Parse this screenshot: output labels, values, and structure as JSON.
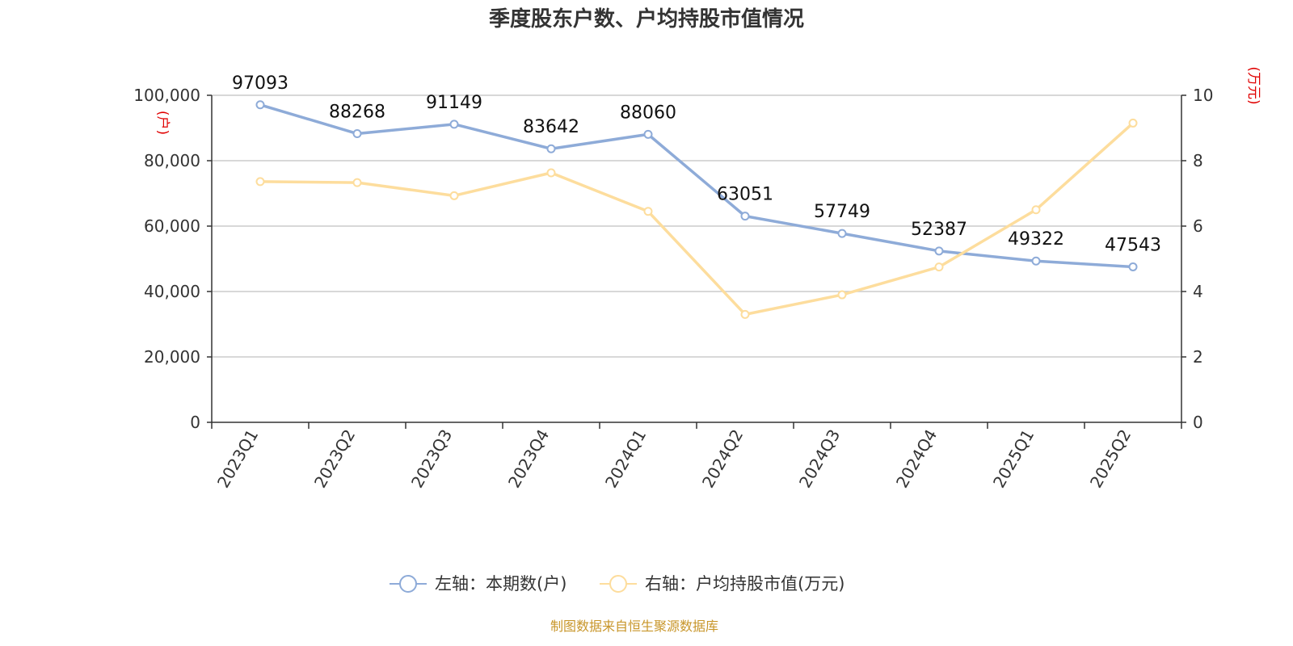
{
  "chart_data": {
    "type": "line",
    "title": "季度股东户数、户均持股市值情况",
    "categories": [
      "2023Q1",
      "2023Q2",
      "2023Q3",
      "2023Q4",
      "2024Q1",
      "2024Q2",
      "2024Q3",
      "2024Q4",
      "2025Q1",
      "2025Q2"
    ],
    "left_axis": {
      "unit": "(户)",
      "ylim": [
        0,
        100000
      ],
      "ticks": [
        "0",
        "20,000",
        "40,000",
        "60,000",
        "80,000",
        "100,000"
      ]
    },
    "right_axis": {
      "unit": "(万元)",
      "ylim": [
        0,
        10
      ],
      "ticks": [
        "0",
        "2",
        "4",
        "6",
        "8",
        "10"
      ]
    },
    "series": [
      {
        "name": "左轴：本期数(户)",
        "axis": "left",
        "color": "#8eabd8",
        "values": [
          97093,
          88268,
          91149,
          83642,
          88060,
          63051,
          57749,
          52387,
          49322,
          47543
        ],
        "labels": [
          "97093",
          "88268",
          "91149",
          "83642",
          "88060",
          "63051",
          "57749",
          "52387",
          "49322",
          "47543"
        ]
      },
      {
        "name": "右轴：户均持股市值(万元)",
        "axis": "right",
        "color": "#fddd9d",
        "values": [
          7.36,
          7.33,
          6.93,
          7.63,
          6.45,
          3.3,
          3.9,
          4.75,
          6.5,
          9.15
        ]
      }
    ],
    "grid": true,
    "legend_position": "bottom-center",
    "source": "制图数据来自恒生聚源数据库"
  }
}
